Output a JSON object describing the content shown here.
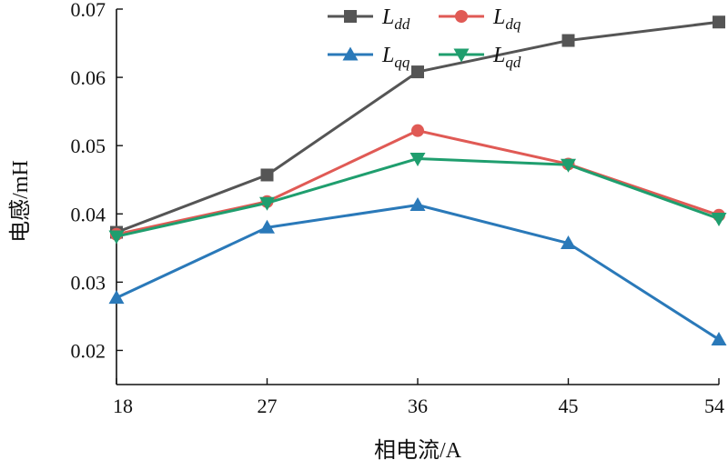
{
  "chart_data": {
    "type": "line",
    "xlabel": "相电流/A",
    "ylabel": "电感/mH",
    "x": [
      18,
      27,
      36,
      45,
      54
    ],
    "xlim": [
      18,
      54
    ],
    "ylim": [
      0.015,
      0.07
    ],
    "yticks": [
      0.02,
      0.03,
      0.04,
      0.05,
      0.06,
      0.07
    ],
    "ytick_labels": [
      "0.02",
      "0.03",
      "0.04",
      "0.05",
      "0.06",
      "0.07"
    ],
    "xtick_labels": [
      "18",
      "27",
      "36",
      "45",
      "54"
    ],
    "grid": false,
    "legend_position": "top",
    "series": [
      {
        "name": "L_dd",
        "label_main": "L",
        "label_sub": "dd",
        "color": "#555555",
        "marker": "square",
        "values": [
          0.0373,
          0.0457,
          0.0608,
          0.0654,
          0.0681
        ]
      },
      {
        "name": "L_dq",
        "label_main": "L",
        "label_sub": "dq",
        "color": "#e05a55",
        "marker": "circle",
        "values": [
          0.037,
          0.0418,
          0.0522,
          0.0473,
          0.0398
        ]
      },
      {
        "name": "L_qq",
        "label_main": "L",
        "label_sub": "qq",
        "color": "#2a79b9",
        "marker": "triangle-up",
        "values": [
          0.0277,
          0.038,
          0.0413,
          0.0357,
          0.0216
        ]
      },
      {
        "name": "L_qd",
        "label_main": "L",
        "label_sub": "qd",
        "color": "#1f9e6e",
        "marker": "triangle-down",
        "values": [
          0.0367,
          0.0416,
          0.0481,
          0.0472,
          0.0393
        ]
      }
    ]
  }
}
